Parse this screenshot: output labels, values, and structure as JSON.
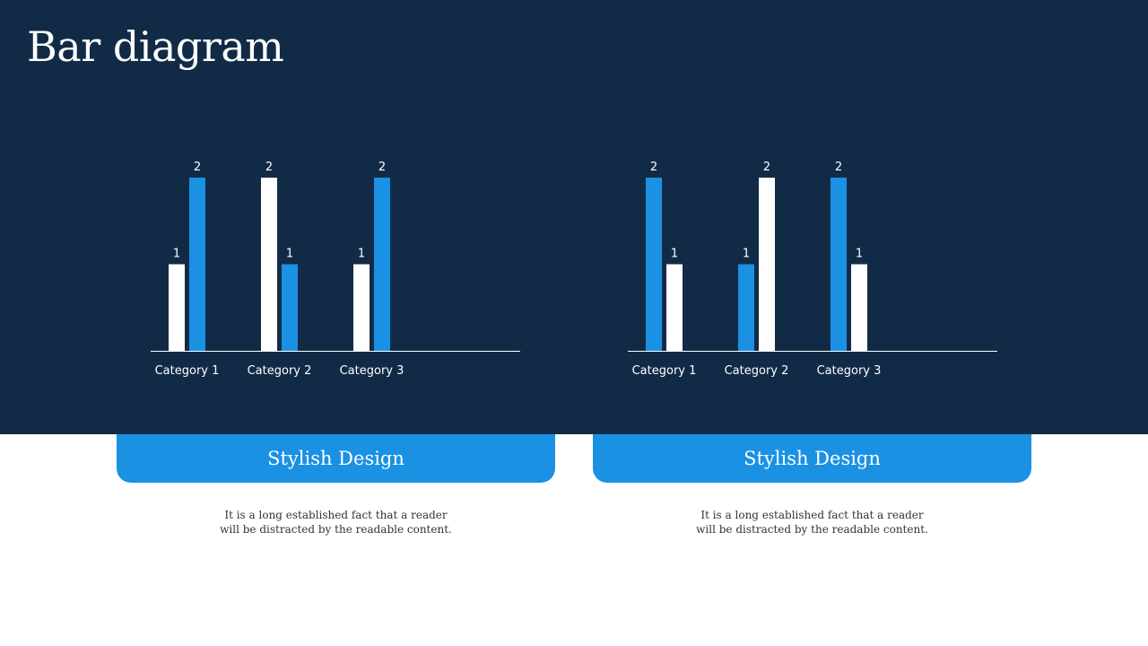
{
  "slide": {
    "title": "Bar diagram",
    "colors": {
      "background_band": "#112b47",
      "accent": "#1a91e3",
      "white": "#ffffff",
      "text_dark": "#333333"
    }
  },
  "cards": [
    {
      "heading": "Stylish Design",
      "body_lines": [
        "It is a long established fact that a reader",
        "will be distracted by the readable content."
      ]
    },
    {
      "heading": "Stylish Design",
      "body_lines": [
        "It is a long established fact that a reader",
        "will be distracted by the readable content."
      ]
    }
  ],
  "chart_data": [
    {
      "type": "bar",
      "categories": [
        "Category 1",
        "Category 2",
        "Category 3"
      ],
      "series": [
        {
          "values": [
            1,
            2,
            1
          ],
          "color": "#ffffff"
        },
        {
          "values": [
            2,
            1,
            2
          ],
          "color": "#1a91e3"
        }
      ],
      "title": "",
      "xlabel": "",
      "ylabel": "",
      "ylim": [
        0,
        2
      ],
      "grid": false,
      "data_labels": true
    },
    {
      "type": "bar",
      "categories": [
        "Category 1",
        "Category 2",
        "Category 3"
      ],
      "series": [
        {
          "values": [
            2,
            1,
            2
          ],
          "color": "#1a91e3"
        },
        {
          "values": [
            1,
            2,
            1
          ],
          "color": "#ffffff"
        }
      ],
      "title": "",
      "xlabel": "",
      "ylabel": "",
      "ylim": [
        0,
        2
      ],
      "grid": false,
      "data_labels": true
    }
  ]
}
